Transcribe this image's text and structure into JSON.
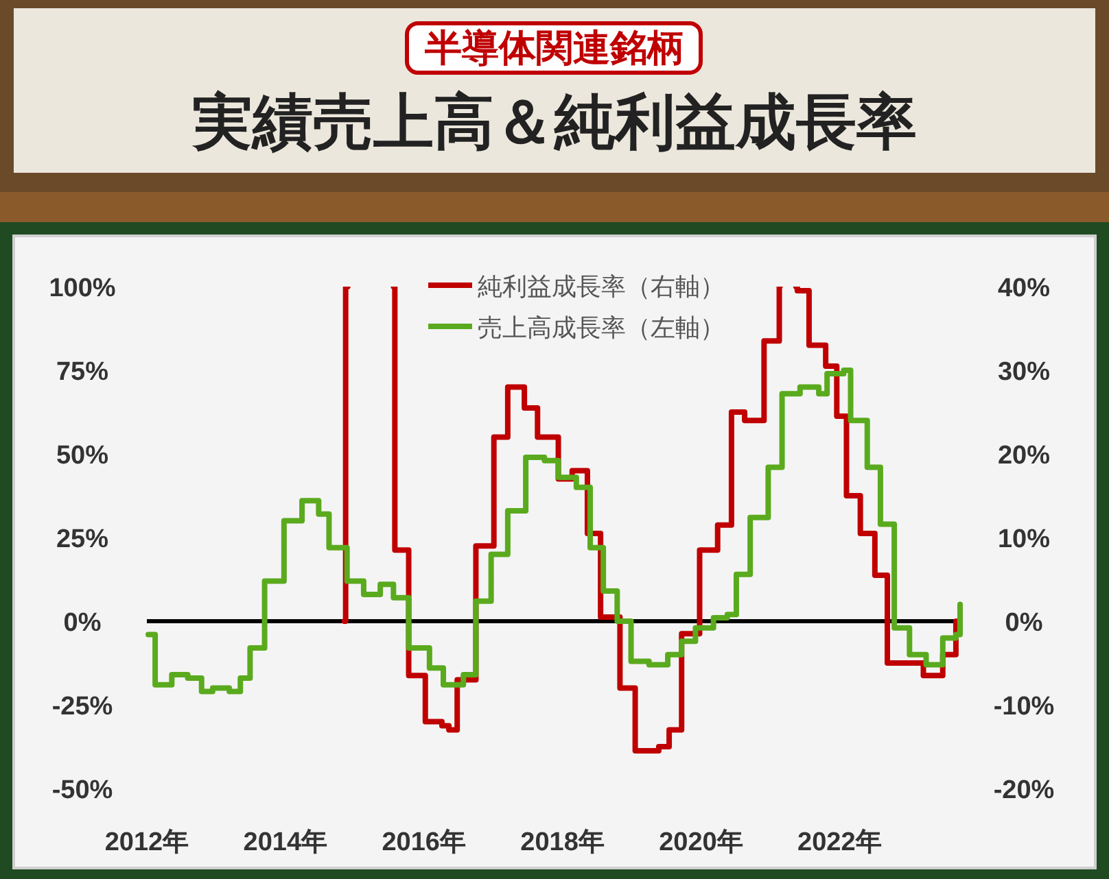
{
  "chart_data": {
    "type": "step",
    "subtitle": "半導体関連銘柄",
    "title": "実績売上高＆純利益成長率",
    "xlim": [
      2012,
      2023.75
    ],
    "xticks": [
      {
        "value": 2012,
        "label": "2012年"
      },
      {
        "value": 2014,
        "label": "2014年"
      },
      {
        "value": 2016,
        "label": "2016年"
      },
      {
        "value": 2018,
        "label": "2018年"
      },
      {
        "value": 2020,
        "label": "2020年"
      },
      {
        "value": 2022,
        "label": "2022年"
      }
    ],
    "ylim": [
      -50,
      100
    ],
    "yticks": [
      {
        "value": -50,
        "label": "-50%"
      },
      {
        "value": -25,
        "label": "-25%"
      },
      {
        "value": 0,
        "label": "0%"
      },
      {
        "value": 25,
        "label": "25%"
      },
      {
        "value": 50,
        "label": "50%"
      },
      {
        "value": 75,
        "label": "75%"
      },
      {
        "value": 100,
        "label": "100%"
      }
    ],
    "y2lim": [
      -20,
      40
    ],
    "y2ticks": [
      {
        "value": -20,
        "label": "-20%"
      },
      {
        "value": -10,
        "label": "-10%"
      },
      {
        "value": 0,
        "label": "0%"
      },
      {
        "value": 10,
        "label": "10%"
      },
      {
        "value": 20,
        "label": "20%"
      },
      {
        "value": 30,
        "label": "30%"
      },
      {
        "value": 40,
        "label": "40%"
      }
    ],
    "legend": "top",
    "grid": false,
    "ref_lines": [
      {
        "axis": "y",
        "value": 0,
        "color": "#000000"
      }
    ],
    "series": [
      {
        "name": "純利益成長率（右軸）",
        "color": "#c00000",
        "axis": "y2",
        "x": [
          2014.85,
          2014.87,
          2014.9,
          2015.56,
          2015.58,
          2015.78,
          2016.02,
          2016.26,
          2016.36,
          2016.48,
          2016.75,
          2017.01,
          2017.21,
          2017.45,
          2017.64,
          2017.94,
          2018.14,
          2018.36,
          2018.55,
          2018.83,
          2019.05,
          2019.39,
          2019.54,
          2019.72,
          2019.98,
          2020.24,
          2020.44,
          2020.63,
          2020.91,
          2021.13,
          2021.14,
          2021.37,
          2021.39,
          2021.56,
          2021.8,
          2021.96,
          2022.1,
          2022.3,
          2022.51,
          2022.69,
          2022.95,
          2023.21,
          2023.49,
          2023.68
        ],
        "values": [
          0,
          40,
          null,
          40,
          8.5,
          -6.5,
          -12,
          -12.5,
          -13,
          -7,
          9,
          22,
          28,
          25.5,
          22,
          17,
          18,
          10.5,
          0.5,
          -8,
          -15.5,
          -15,
          -13,
          -1.5,
          8.5,
          11.5,
          25,
          24,
          33.5,
          40,
          null,
          40,
          39.5,
          33,
          30.5,
          24.5,
          15,
          10.5,
          5.5,
          -5,
          -5,
          -6.5,
          -4,
          0
        ]
      },
      {
        "name": "売上高成長率（左軸）",
        "color": "#5aaa1e",
        "axis": "y",
        "x": [
          2012.02,
          2012.12,
          2012.36,
          2012.59,
          2012.79,
          2012.95,
          2013.19,
          2013.35,
          2013.49,
          2013.7,
          2013.98,
          2014.24,
          2014.48,
          2014.63,
          2014.89,
          2015.13,
          2015.37,
          2015.56,
          2015.78,
          2016.08,
          2016.28,
          2016.57,
          2016.75,
          2016.97,
          2017.21,
          2017.47,
          2017.74,
          2017.94,
          2018.2,
          2018.4,
          2018.59,
          2018.79,
          2018.99,
          2019.25,
          2019.52,
          2019.72,
          2019.92,
          2020.18,
          2020.38,
          2020.51,
          2020.71,
          2020.97,
          2021.17,
          2021.43,
          2021.7,
          2021.82,
          2022.06,
          2022.16,
          2022.4,
          2022.59,
          2022.79,
          2023.01,
          2023.25,
          2023.49,
          2023.68,
          2023.74
        ],
        "values": [
          -4,
          -19,
          -16,
          -17,
          -21,
          -20,
          -21,
          -17,
          -8,
          12,
          30,
          36,
          32,
          22,
          12,
          8,
          11,
          7,
          -8,
          -14,
          -19,
          -16,
          6,
          20,
          33,
          49,
          48,
          43,
          40,
          22,
          9,
          0,
          -12,
          -13,
          -10,
          -6,
          -2,
          1,
          2,
          14,
          31,
          46,
          68,
          70,
          68,
          74,
          75,
          60,
          46,
          29,
          -2,
          -10,
          -13,
          -5,
          -4,
          5
        ]
      }
    ]
  }
}
